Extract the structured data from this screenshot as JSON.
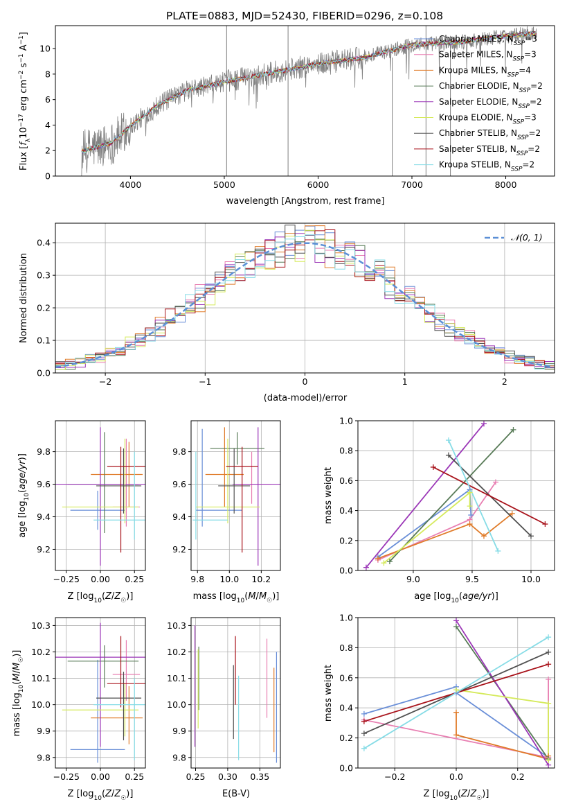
{
  "figure": {
    "title": "PLATE=0883, MJD=52430, FIBERID=0296, z=0.108"
  },
  "colors": [
    "#6a8fd8",
    "#e87fb2",
    "#e07b29",
    "#577a56",
    "#9b36b7",
    "#d5ea5b",
    "#505050",
    "#a8121a",
    "#86dce6"
  ],
  "chart_data": [
    {
      "panel": "spectrum",
      "type": "line",
      "xlabel": "wavelength [Angstrom, rest frame]",
      "ylabel": "Flux [f_λ10^-17 erg cm^-2 s^-1 A^-1]",
      "xlim": [
        3200,
        8520
      ],
      "ylim": [
        0,
        11.8
      ],
      "xticks": [
        4000,
        5000,
        6000,
        7000,
        8000
      ],
      "yticks": [
        0,
        2,
        4,
        6,
        8,
        10
      ],
      "grid": false,
      "legend_position": "top-right",
      "data_trend": {
        "x": [
          3480,
          3600,
          3800,
          4000,
          4300,
          4600,
          5000,
          5500,
          6000,
          6500,
          7000,
          7500,
          8000,
          8300
        ],
        "y": [
          1.9,
          2.2,
          2.6,
          3.9,
          5.6,
          6.7,
          7.4,
          8.1,
          8.8,
          9.3,
          10.3,
          10.5,
          11.0,
          11.2
        ]
      },
      "spikes": [
        {
          "x": 5025,
          "ymin": 0,
          "ymax": 11.8
        },
        {
          "x": 5680,
          "ymin": 0,
          "ymax": 11.8
        },
        {
          "x": 7150,
          "ymin": 0,
          "ymax": 11.8
        },
        {
          "x": 6790,
          "ymin": 0,
          "ymax": 9.3
        },
        {
          "x": 7410,
          "ymin": 0,
          "ymax": 11.0
        }
      ],
      "series": [
        {
          "name": "Chabrier MILES, N_SSP=3",
          "color": "#6a8fd8"
        },
        {
          "name": "Salpeter MILES, N_SSP=3",
          "color": "#e87fb2"
        },
        {
          "name": "Kroupa MILES, N_SSP=4",
          "color": "#e07b29"
        },
        {
          "name": "Chabrier ELODIE, N_SSP=2",
          "color": "#577a56"
        },
        {
          "name": "Salpeter ELODIE, N_SSP=2",
          "color": "#9b36b7"
        },
        {
          "name": "Kroupa ELODIE, N_SSP=3",
          "color": "#d5ea5b"
        },
        {
          "name": "Chabrier STELIB, N_SSP=2",
          "color": "#505050"
        },
        {
          "name": "Salpeter STELIB, N_SSP=2",
          "color": "#a8121a"
        },
        {
          "name": "Kroupa STELIB, N_SSP=2",
          "color": "#86dce6"
        }
      ]
    },
    {
      "panel": "residuals",
      "type": "line",
      "xlabel": "(data-model)/error",
      "ylabel": "Normed distribution",
      "xlim": [
        -2.5,
        2.5
      ],
      "ylim": [
        0,
        0.46
      ],
      "xticks": [
        -2,
        -1,
        0,
        1,
        2
      ],
      "xticklabels": [
        "−2",
        "−1",
        "0",
        "1",
        "2"
      ],
      "yticks": [
        0,
        0.1,
        0.2,
        0.3,
        0.4
      ],
      "yticklabels": [
        "0.0",
        "0.1",
        "0.2",
        "0.3",
        "0.4"
      ],
      "grid": true,
      "legend": "𝒩(0, 1)",
      "legend_position": "top-right",
      "bin_width": 0.1,
      "note": "step histograms per model follow N(0,1) with scatter"
    },
    {
      "panel": "age-Z",
      "type": "errorbar",
      "xlabel": "Z [log10(Z/Z☉)]",
      "ylabel": "age [log10(age/yr)]",
      "xlim": [
        -0.33,
        0.33
      ],
      "ylim": [
        9.07,
        9.99
      ],
      "xticks": [
        -0.25,
        0,
        0.25
      ],
      "xticklabels": [
        "−0.25",
        "0.00",
        "0.25"
      ],
      "yticks": [
        9.2,
        9.4,
        9.6,
        9.8
      ],
      "yticklabels": [
        "9.2",
        "9.4",
        "9.6",
        "9.8"
      ],
      "grid": true,
      "points": [
        {
          "x": -0.02,
          "xerr": [
            0.2,
            0.2
          ],
          "y": 9.44,
          "yerr": [
            0.12,
            0.12
          ],
          "color": "#6a8fd8"
        },
        {
          "x": 0.19,
          "xerr": [
            0.1,
            0.1
          ],
          "y": 9.46,
          "yerr": [
            0.12,
            0.42
          ],
          "color": "#e87fb2"
        },
        {
          "x": 0.21,
          "xerr": [
            0.28,
            0.1
          ],
          "y": 9.66,
          "yerr": [
            0.2,
            0.2
          ],
          "color": "#e07b29"
        },
        {
          "x": 0.03,
          "xerr": [
            0.27,
            0.25
          ],
          "y": 9.6,
          "yerr": [
            0.3,
            0.32
          ],
          "color": "#577a56"
        },
        {
          "x": 0.0,
          "xerr": [
            0.33,
            0.33
          ],
          "y": 9.6,
          "yerr": [
            0.5,
            0.35
          ],
          "color": "#9b36b7"
        },
        {
          "x": 0.18,
          "xerr": [
            0.46,
            0.1
          ],
          "y": 9.46,
          "yerr": [
            0.1,
            0.42
          ],
          "color": "#d5ea5b"
        },
        {
          "x": 0.17,
          "xerr": [
            0.2,
            0.13
          ],
          "y": 9.59,
          "yerr": [
            0.17,
            0.23
          ],
          "color": "#505050"
        },
        {
          "x": 0.15,
          "xerr": [
            0.1,
            0.22
          ],
          "y": 9.71,
          "yerr": [
            0.53,
            0.12
          ],
          "color": "#a8121a"
        },
        {
          "x": 0.25,
          "xerr": [
            0.3,
            0.1
          ],
          "y": 9.38,
          "yerr": [
            0.12,
            0.42
          ],
          "color": "#86dce6"
        }
      ]
    },
    {
      "panel": "age-mass",
      "type": "errorbar",
      "xlabel": "mass [log10(M/M☉)]",
      "ylabel": "",
      "xlim": [
        9.76,
        10.32
      ],
      "ylim": [
        9.07,
        9.99
      ],
      "xticks": [
        9.8,
        10.0,
        10.2
      ],
      "xticklabels": [
        "9.8",
        "10.0",
        "10.2"
      ],
      "yticks": [
        9.2,
        9.4,
        9.6,
        9.8
      ],
      "yticklabels": [
        "9.2",
        "9.4",
        "9.6",
        "9.8"
      ],
      "grid": true,
      "points": [
        {
          "x": 9.83,
          "xerr": [
            0.04,
            0.25
          ],
          "y": 9.44,
          "yerr": [
            0.1,
            0.5
          ],
          "color": "#6a8fd8"
        },
        {
          "x": 10.14,
          "xerr": [
            0.1,
            0.12
          ],
          "y": 9.6,
          "yerr": [
            0.12,
            0.2
          ],
          "color": "#e87fb2"
        },
        {
          "x": 9.97,
          "xerr": [
            0.12,
            0.12
          ],
          "y": 9.66,
          "yerr": [
            0.2,
            0.29
          ],
          "color": "#e07b29"
        },
        {
          "x": 10.05,
          "xerr": [
            0.17,
            0.17
          ],
          "y": 9.82,
          "yerr": [
            0.1,
            0.1
          ],
          "color": "#577a56"
        },
        {
          "x": 10.18,
          "xerr": [
            0.16,
            0.22
          ],
          "y": 9.6,
          "yerr": [
            0.5,
            0.35
          ],
          "color": "#9b36b7"
        },
        {
          "x": 9.99,
          "xerr": [
            0.2,
            0.2
          ],
          "y": 9.46,
          "yerr": [
            0.1,
            0.42
          ],
          "color": "#d5ea5b"
        },
        {
          "x": 10.03,
          "xerr": [
            0.1,
            0.1
          ],
          "y": 9.59,
          "yerr": [
            0.17,
            0.23
          ],
          "color": "#505050"
        },
        {
          "x": 10.08,
          "xerr": [
            0.1,
            0.1
          ],
          "y": 9.71,
          "yerr": [
            0.53,
            0.12
          ],
          "color": "#a8121a"
        },
        {
          "x": 9.79,
          "xerr": [
            0.02,
            0.2
          ],
          "y": 9.38,
          "yerr": [
            0.12,
            0.42
          ],
          "color": "#86dce6"
        }
      ]
    },
    {
      "panel": "weight-age",
      "type": "line",
      "xlabel": "age [log10(age/yr)]",
      "ylabel": "mass weight",
      "xlim": [
        8.53,
        10.2
      ],
      "ylim": [
        0,
        1
      ],
      "xticks": [
        9.0,
        9.5,
        10.0
      ],
      "xticklabels": [
        "9.0",
        "9.5",
        "10.0"
      ],
      "yticks": [
        0,
        0.2,
        0.4,
        0.6,
        0.8,
        1
      ],
      "yticklabels": [
        "0.0",
        "0.2",
        "0.4",
        "0.6",
        "0.8",
        "1.0"
      ],
      "grid": true,
      "series": [
        {
          "color": "#6a8fd8",
          "x": [
            8.7,
            9.48,
            9.49
          ],
          "y": [
            0.09,
            0.54,
            0.37
          ]
        },
        {
          "color": "#e87fb2",
          "x": [
            8.7,
            9.48,
            9.7
          ],
          "y": [
            0.07,
            0.34,
            0.59
          ]
        },
        {
          "color": "#e07b29",
          "x": [
            8.7,
            9.48,
            9.6,
            9.84
          ],
          "y": [
            0.08,
            0.31,
            0.23,
            0.38
          ]
        },
        {
          "color": "#577a56",
          "x": [
            8.8,
            9.85
          ],
          "y": [
            0.06,
            0.94
          ]
        },
        {
          "color": "#9b36b7",
          "x": [
            8.6,
            9.6
          ],
          "y": [
            0.02,
            0.98
          ]
        },
        {
          "color": "#d5ea5b",
          "x": [
            8.75,
            9.48,
            9.48
          ],
          "y": [
            0.05,
            0.52,
            0.43
          ]
        },
        {
          "color": "#505050",
          "x": [
            9.3,
            10.0
          ],
          "y": [
            0.77,
            0.23
          ]
        },
        {
          "color": "#a8121a",
          "x": [
            9.17,
            10.12
          ],
          "y": [
            0.69,
            0.31
          ]
        },
        {
          "color": "#86dce6",
          "x": [
            9.3,
            9.72
          ],
          "y": [
            0.87,
            0.13
          ]
        }
      ]
    },
    {
      "panel": "mass-Z",
      "type": "errorbar",
      "xlabel": "Z [log10(Z/Z☉)]",
      "ylabel": "mass [log10(M/M☉)]",
      "xlim": [
        -0.33,
        0.33
      ],
      "ylim": [
        9.76,
        10.33
      ],
      "xticks": [
        -0.25,
        0,
        0.25
      ],
      "xticklabels": [
        "−0.25",
        "0.00",
        "0.25"
      ],
      "yticks": [
        9.8,
        9.9,
        10.0,
        10.1,
        10.2,
        10.3
      ],
      "yticklabels": [
        "9.8",
        "9.9",
        "10.0",
        "10.1",
        "10.2",
        "10.3"
      ],
      "grid": true,
      "points": [
        {
          "x": -0.02,
          "xerr": [
            0.2,
            0.2
          ],
          "y": 9.83,
          "yerr": [
            0.05,
            0.34
          ],
          "color": "#6a8fd8"
        },
        {
          "x": 0.19,
          "xerr": [
            0.1,
            0.1
          ],
          "y": 10.115,
          "yerr": [
            0.1,
            0.13
          ],
          "color": "#e87fb2"
        },
        {
          "x": 0.21,
          "xerr": [
            0.28,
            0.1
          ],
          "y": 9.95,
          "yerr": [
            0.1,
            0.12
          ],
          "color": "#e07b29"
        },
        {
          "x": 0.03,
          "xerr": [
            0.27,
            0.25
          ],
          "y": 10.165,
          "yerr": [
            0.1,
            0.06
          ],
          "color": "#577a56"
        },
        {
          "x": 0.0,
          "xerr": [
            0.33,
            0.33
          ],
          "y": 10.18,
          "yerr": [
            0.34,
            0.13
          ],
          "color": "#9b36b7"
        },
        {
          "x": 0.18,
          "xerr": [
            0.46,
            0.1
          ],
          "y": 9.98,
          "yerr": [
            0.1,
            0.1
          ],
          "color": "#d5ea5b"
        },
        {
          "x": 0.17,
          "xerr": [
            0.2,
            0.13
          ],
          "y": 10.025,
          "yerr": [
            0.16,
            0.1
          ],
          "color": "#505050"
        },
        {
          "x": 0.15,
          "xerr": [
            0.1,
            0.22
          ],
          "y": 10.08,
          "yerr": [
            0.09,
            0.18
          ],
          "color": "#a8121a"
        },
        {
          "x": 0.25,
          "xerr": [
            0.3,
            0.1
          ],
          "y": 10.0,
          "yerr": [
            0.21,
            0.1
          ],
          "color": "#86dce6"
        }
      ]
    },
    {
      "panel": "mass-EBV",
      "type": "errorbar",
      "xlabel": "E(B-V)",
      "ylabel": "",
      "xlim": [
        0.243,
        0.382
      ],
      "ylim": [
        9.76,
        10.33
      ],
      "xticks": [
        0.25,
        0.3,
        0.35
      ],
      "xticklabels": [
        "0.25",
        "0.30",
        "0.35"
      ],
      "yticks": [
        9.8,
        9.9,
        10.0,
        10.1,
        10.2,
        10.3
      ],
      "yticklabels": [
        "9.8",
        "9.9",
        "10.0",
        "10.1",
        "10.2",
        "10.3"
      ],
      "grid": true,
      "points": [
        {
          "x": 0.376,
          "y": 9.99,
          "yerr": [
            0.21,
            0.21
          ],
          "color": "#6a8fd8"
        },
        {
          "x": 0.361,
          "y": 10.1,
          "yerr": [
            0.15,
            0.15
          ],
          "color": "#e87fb2"
        },
        {
          "x": 0.372,
          "y": 9.98,
          "yerr": [
            0.16,
            0.16
          ],
          "color": "#e07b29"
        },
        {
          "x": 0.255,
          "y": 10.1,
          "yerr": [
            0.12,
            0.12
          ],
          "color": "#577a56"
        },
        {
          "x": 0.249,
          "y": 10.07,
          "yerr": [
            0.23,
            0.23
          ],
          "color": "#9b36b7"
        },
        {
          "x": 0.254,
          "y": 10.06,
          "yerr": [
            0.15,
            0.15
          ],
          "color": "#d5ea5b"
        },
        {
          "x": 0.309,
          "y": 10.01,
          "yerr": [
            0.14,
            0.14
          ],
          "color": "#505050"
        },
        {
          "x": 0.312,
          "y": 10.13,
          "yerr": [
            0.13,
            0.13
          ],
          "color": "#a8121a"
        },
        {
          "x": 0.317,
          "y": 9.95,
          "yerr": [
            0.16,
            0.16
          ],
          "color": "#86dce6"
        }
      ]
    },
    {
      "panel": "weight-Z",
      "type": "line",
      "xlabel": "Z [log10(Z/Z☉)]",
      "ylabel": "mass weight",
      "xlim": [
        -0.32,
        0.32
      ],
      "ylim": [
        0,
        1
      ],
      "xticks": [
        -0.2,
        0,
        0.2
      ],
      "xticklabels": [
        "−0.2",
        "0.0",
        "0.2"
      ],
      "yticks": [
        0,
        0.2,
        0.4,
        0.6,
        0.8,
        1
      ],
      "yticklabels": [
        "0.0",
        "0.2",
        "0.4",
        "0.6",
        "0.8",
        "1.0"
      ],
      "grid": true,
      "series": [
        {
          "color": "#6a8fd8",
          "x": [
            -0.3,
            0.0,
            0.0,
            0.3
          ],
          "y": [
            0.36,
            0.54,
            0.5,
            0.07
          ]
        },
        {
          "color": "#e87fb2",
          "x": [
            -0.3,
            0.3,
            0.3
          ],
          "y": [
            0.32,
            0.07,
            0.59
          ]
        },
        {
          "color": "#e07b29",
          "x": [
            0.0,
            0.0,
            0.3,
            0.3
          ],
          "y": [
            0.37,
            0.22,
            0.06,
            0.08
          ]
        },
        {
          "color": "#577a56",
          "x": [
            0.0,
            0.3
          ],
          "y": [
            0.94,
            0.06
          ]
        },
        {
          "color": "#9b36b7",
          "x": [
            0.0,
            0.3
          ],
          "y": [
            0.98,
            0.02
          ]
        },
        {
          "color": "#d5ea5b",
          "x": [
            0.0,
            0.3,
            0.3
          ],
          "y": [
            0.52,
            0.43,
            0.05
          ]
        },
        {
          "color": "#505050",
          "x": [
            -0.3,
            0.3
          ],
          "y": [
            0.23,
            0.77
          ]
        },
        {
          "color": "#a8121a",
          "x": [
            -0.3,
            0.3
          ],
          "y": [
            0.31,
            0.69
          ]
        },
        {
          "color": "#86dce6",
          "x": [
            -0.3,
            0.3
          ],
          "y": [
            0.13,
            0.87
          ]
        }
      ]
    }
  ]
}
